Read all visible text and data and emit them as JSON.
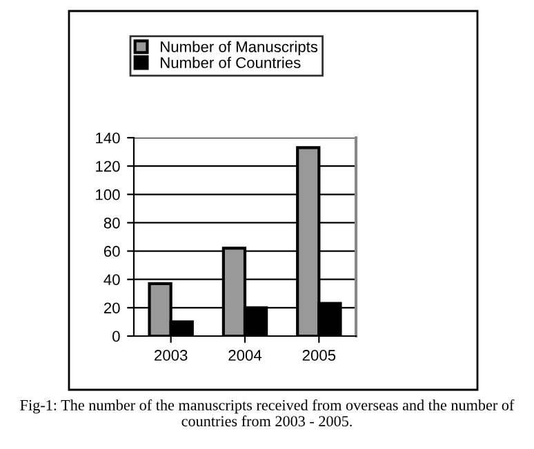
{
  "chart_data": {
    "type": "bar",
    "categories": [
      "2003",
      "2004",
      "2005"
    ],
    "series": [
      {
        "name": "Number of Manuscripts",
        "color": "#999999",
        "values": [
          37,
          62,
          133
        ]
      },
      {
        "name": "Number of Countries",
        "color": "#000000",
        "values": [
          10,
          20,
          23
        ]
      }
    ],
    "ylim": [
      0,
      140
    ],
    "yticks": [
      0,
      20,
      40,
      60,
      80,
      100,
      120,
      140
    ],
    "grid": "y",
    "legend": "top",
    "annotations": [
      "Fig-1: The number of the manuscripts received from overseas and the number of countries from 2003 - 2005."
    ]
  }
}
